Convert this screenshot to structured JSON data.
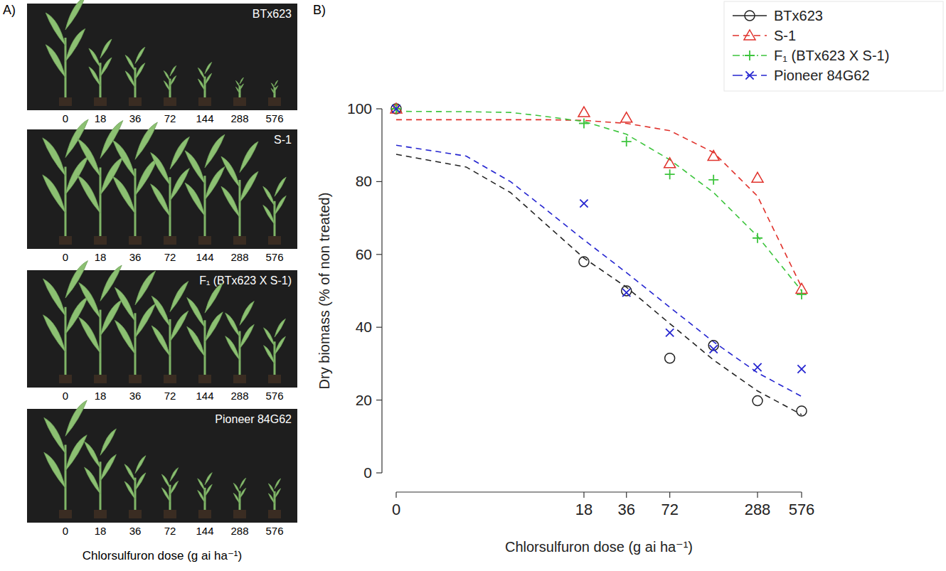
{
  "panel_a": {
    "label": "A)",
    "x_label": "Chlorsulfuron dose (g ai ha⁻¹)"
  },
  "chart_data": {
    "type": "scatter",
    "panel_label": "B)",
    "x_label": "Chlorsulfuron dose (g ai ha⁻¹)",
    "y_label": "Dry biomass (% of non treated)",
    "x": [
      0,
      18,
      36,
      72,
      144,
      288,
      576
    ],
    "xlim": [
      0,
      576
    ],
    "xticks": [
      0,
      18,
      36,
      72,
      288,
      576
    ],
    "log": "x",
    "ylim": [
      0,
      100
    ],
    "yticks": [
      0,
      20,
      40,
      60,
      80,
      100
    ],
    "grid": false,
    "legend": "top-right",
    "fit_x": [
      0,
      2,
      5,
      9,
      18,
      36,
      72,
      144,
      288,
      576
    ],
    "series": [
      {
        "name": "BTx623",
        "color": "#222222",
        "marker": "circle",
        "line_style": "solid",
        "values": [
          100,
          58,
          50,
          31.5,
          35,
          19.8,
          17
        ],
        "fit": [
          87.5,
          84,
          77,
          69,
          59,
          51,
          41,
          31,
          22.5,
          16
        ]
      },
      {
        "name": "S-1",
        "color": "#e0312b",
        "marker": "triangle",
        "line_style": "dashed",
        "values": [
          100,
          99,
          97.5,
          85,
          87,
          81,
          50.5
        ],
        "fit": [
          97,
          97,
          97,
          97,
          96.8,
          96,
          94,
          88,
          76,
          51
        ]
      },
      {
        "name": "F₁ (BTx623 X S-1)",
        "color": "#3cc43c",
        "marker": "plus",
        "line_style": "dashdot",
        "values": [
          100,
          96,
          91,
          82,
          80.5,
          64.5,
          49
        ],
        "fit": [
          99.3,
          99.2,
          99,
          98,
          96.5,
          93,
          86,
          77,
          65,
          50
        ]
      },
      {
        "name": "Pioneer 84G62",
        "color": "#2525d0",
        "marker": "x",
        "line_style": "longdash",
        "values": [
          100,
          74,
          49.5,
          38.5,
          34,
          29,
          28.5
        ],
        "fit": [
          90,
          87,
          80,
          73,
          64,
          55,
          45.5,
          36,
          27.5,
          21
        ]
      }
    ]
  }
}
